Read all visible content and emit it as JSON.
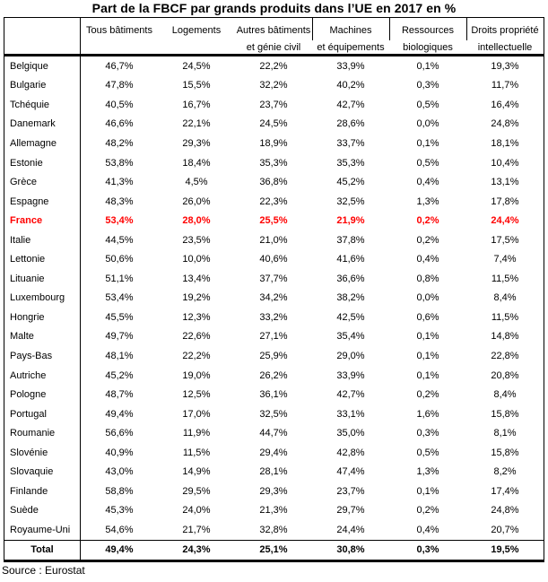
{
  "title": "Part de la FBCF par grands produits dans l’UE en 2017 en %",
  "source": "Source : Eurostat",
  "colors": {
    "highlight": "#ff0000",
    "border": "#000000"
  },
  "chart_data": {
    "type": "table",
    "title": "Part de la FBCF par grands produits dans l’UE en 2017 en %",
    "unit": "%",
    "columns": [
      {
        "line1": "",
        "line2": ""
      },
      {
        "line1": "Tous bâtiments",
        "line2": ""
      },
      {
        "line1": "Logements",
        "line2": ""
      },
      {
        "line1": "Autres bâtiments",
        "line2": "et  génie civil"
      },
      {
        "line1": "Machines",
        "line2": "et équipements"
      },
      {
        "line1": "Ressources",
        "line2": "biologiques"
      },
      {
        "line1": "Droits propriété",
        "line2": "intellectuelle"
      }
    ],
    "rows": [
      {
        "country": "Belgique",
        "values": [
          46.7,
          24.5,
          22.2,
          33.9,
          0.1,
          19.3
        ]
      },
      {
        "country": "Bulgarie",
        "values": [
          47.8,
          15.5,
          32.2,
          40.2,
          0.3,
          11.7
        ]
      },
      {
        "country": "Tchéquie",
        "values": [
          40.5,
          16.7,
          23.7,
          42.7,
          0.5,
          16.4
        ]
      },
      {
        "country": "Danemark",
        "values": [
          46.6,
          22.1,
          24.5,
          28.6,
          0.0,
          24.8
        ]
      },
      {
        "country": "Allemagne",
        "values": [
          48.2,
          29.3,
          18.9,
          33.7,
          0.1,
          18.1
        ]
      },
      {
        "country": "Estonie",
        "values": [
          53.8,
          18.4,
          35.3,
          35.3,
          0.5,
          10.4
        ]
      },
      {
        "country": "Grèce",
        "values": [
          41.3,
          4.5,
          36.8,
          45.2,
          0.4,
          13.1
        ]
      },
      {
        "country": "Espagne",
        "values": [
          48.3,
          26.0,
          22.3,
          32.5,
          1.3,
          17.8
        ]
      },
      {
        "country": "France",
        "values": [
          53.4,
          28.0,
          25.5,
          21.9,
          0.2,
          24.4
        ],
        "highlight": true
      },
      {
        "country": "Italie",
        "values": [
          44.5,
          23.5,
          21.0,
          37.8,
          0.2,
          17.5
        ]
      },
      {
        "country": "Lettonie",
        "values": [
          50.6,
          10.0,
          40.6,
          41.6,
          0.4,
          7.4
        ]
      },
      {
        "country": "Lituanie",
        "values": [
          51.1,
          13.4,
          37.7,
          36.6,
          0.8,
          11.5
        ]
      },
      {
        "country": "Luxembourg",
        "values": [
          53.4,
          19.2,
          34.2,
          38.2,
          0.0,
          8.4
        ]
      },
      {
        "country": "Hongrie",
        "values": [
          45.5,
          12.3,
          33.2,
          42.5,
          0.6,
          11.5
        ]
      },
      {
        "country": "Malte",
        "values": [
          49.7,
          22.6,
          27.1,
          35.4,
          0.1,
          14.8
        ]
      },
      {
        "country": "Pays-Bas",
        "values": [
          48.1,
          22.2,
          25.9,
          29.0,
          0.1,
          22.8
        ]
      },
      {
        "country": "Autriche",
        "values": [
          45.2,
          19.0,
          26.2,
          33.9,
          0.1,
          20.8
        ]
      },
      {
        "country": "Pologne",
        "values": [
          48.7,
          12.5,
          36.1,
          42.7,
          0.2,
          8.4
        ]
      },
      {
        "country": "Portugal",
        "values": [
          49.4,
          17.0,
          32.5,
          33.1,
          1.6,
          15.8
        ]
      },
      {
        "country": "Roumanie",
        "values": [
          56.6,
          11.9,
          44.7,
          35.0,
          0.3,
          8.1
        ]
      },
      {
        "country": "Slovénie",
        "values": [
          40.9,
          11.5,
          29.4,
          42.8,
          0.5,
          15.8
        ]
      },
      {
        "country": "Slovaquie",
        "values": [
          43.0,
          14.9,
          28.1,
          47.4,
          1.3,
          8.2
        ]
      },
      {
        "country": "Finlande",
        "values": [
          58.8,
          29.5,
          29.3,
          23.7,
          0.1,
          17.4
        ]
      },
      {
        "country": "Suède",
        "values": [
          45.3,
          24.0,
          21.3,
          29.7,
          0.2,
          24.8
        ]
      },
      {
        "country": "Royaume-Uni",
        "values": [
          54.6,
          21.7,
          32.8,
          24.4,
          0.4,
          20.7
        ]
      },
      {
        "country": "Total",
        "values": [
          49.4,
          24.3,
          25.1,
          30.8,
          0.3,
          19.5
        ],
        "total": true
      }
    ]
  }
}
